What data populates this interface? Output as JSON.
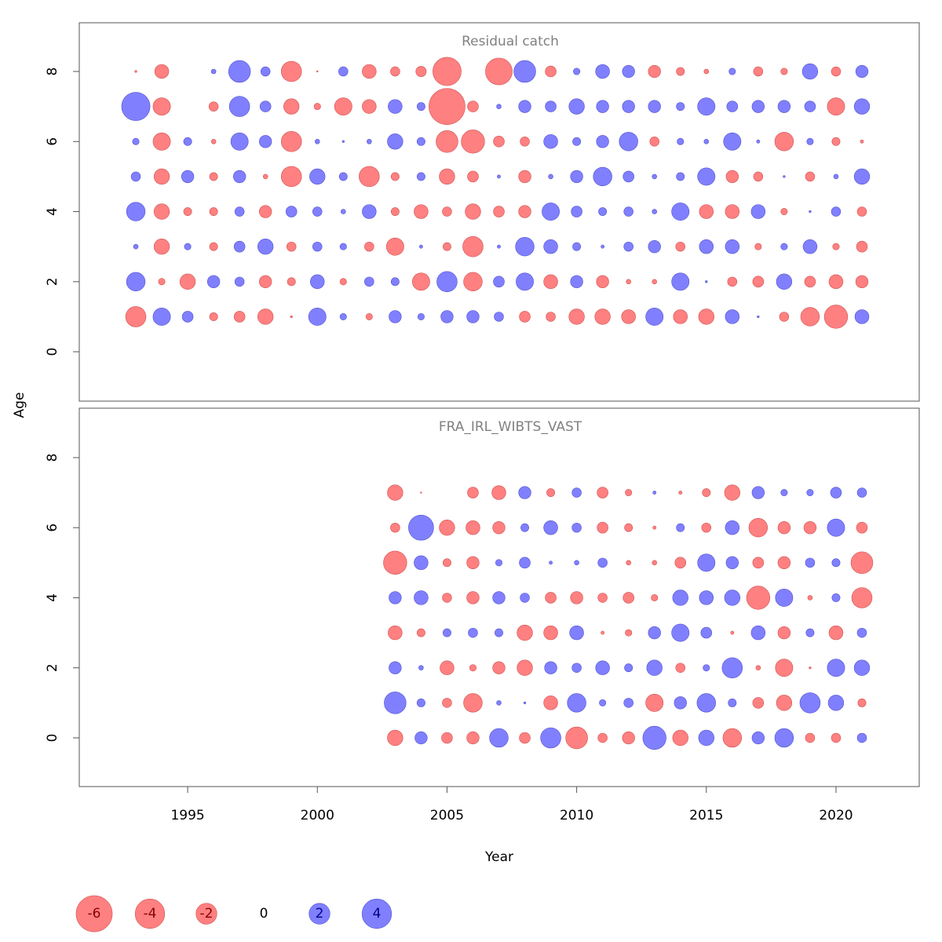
{
  "chart_data": [
    {
      "type": "bubble",
      "title": "Residual catch",
      "x": [
        1993,
        1994,
        1995,
        1996,
        1997,
        1998,
        1999,
        2000,
        2001,
        2002,
        2003,
        2004,
        2005,
        2006,
        2007,
        2008,
        2009,
        2010,
        2011,
        2012,
        2013,
        2014,
        2015,
        2016,
        2017,
        2018,
        2019,
        2020,
        2021
      ],
      "y": [
        1,
        2,
        3,
        4,
        5,
        6,
        7,
        8
      ],
      "values": [
        [
          -1.9,
          1.4,
          0.55,
          -0.3,
          -0.55,
          -1.1,
          -0.02,
          1.4,
          0.2,
          -0.2,
          0.7,
          0.2,
          0.7,
          0.7,
          0.4,
          -0.55,
          -0.4,
          -1.1,
          -1.1,
          -0.9,
          1.4,
          -0.9,
          -1.1,
          0.9,
          0.02,
          -0.4,
          -1.6,
          -2.5,
          0.9
        ],
        [
          1.6,
          -0.2,
          -1.1,
          0.7,
          0.4,
          -0.7,
          -0.3,
          0.9,
          -0.2,
          0.4,
          0.3,
          -1.4,
          1.9,
          -1.6,
          0.55,
          1.4,
          -0.9,
          0.7,
          -0.7,
          -0.1,
          -0.1,
          1.4,
          0.02,
          -0.4,
          -0.55,
          1.1,
          -0.55,
          -0.9,
          -0.7
        ],
        [
          0.1,
          -1.1,
          0.2,
          -0.3,
          0.55,
          1.1,
          -0.4,
          0.4,
          0.2,
          -0.4,
          -1.4,
          0.05,
          -0.3,
          -1.9,
          0.05,
          1.6,
          0.9,
          0.3,
          0.05,
          0.4,
          0.7,
          -0.4,
          0.9,
          0.9,
          -0.2,
          0.2,
          0.9,
          -0.2,
          -0.55
        ],
        [
          1.6,
          -1.1,
          -0.3,
          -0.3,
          0.4,
          -0.7,
          0.55,
          0.4,
          0.1,
          0.9,
          -0.3,
          -0.9,
          -0.4,
          -1.1,
          -0.55,
          -0.7,
          1.4,
          0.55,
          0.3,
          0.4,
          0.1,
          1.4,
          -0.9,
          -0.9,
          0.9,
          -0.2,
          0.02,
          0.4,
          -0.4
        ],
        [
          0.4,
          -1.1,
          0.7,
          -0.3,
          0.7,
          -0.1,
          -1.9,
          1.1,
          0.3,
          -1.9,
          -0.3,
          0.3,
          -1.1,
          -0.55,
          0.05,
          -0.7,
          0.1,
          0.7,
          1.6,
          0.55,
          0.1,
          0.3,
          1.4,
          -0.7,
          -0.4,
          0.02,
          -0.4,
          0.1,
          1.1
        ],
        [
          0.2,
          -1.4,
          0.3,
          -0.1,
          1.4,
          0.7,
          -1.9,
          0.1,
          0.02,
          0.1,
          1.1,
          0.3,
          -2.2,
          -2.5,
          -0.55,
          -0.4,
          0.9,
          0.3,
          0.7,
          1.6,
          -0.4,
          0.2,
          0.1,
          1.4,
          0.05,
          -1.6,
          0.2,
          -0.3,
          -0.05
        ],
        [
          3.7,
          -1.4,
          null,
          -0.4,
          1.9,
          0.55,
          -1.1,
          -0.2,
          -1.4,
          -0.9,
          0.9,
          0.3,
          -6,
          -0.55,
          0.1,
          0.7,
          0.55,
          1.1,
          0.7,
          0.7,
          0.7,
          0.3,
          1.4,
          0.55,
          0.7,
          0.7,
          0.55,
          -1.4,
          1.1
        ],
        [
          -0.02,
          -0.9,
          null,
          0.1,
          2.2,
          0.4,
          -1.9,
          -0.01,
          0.4,
          -0.9,
          -0.4,
          -0.5,
          -3.7,
          null,
          -3.3,
          2.2,
          -0.55,
          0.2,
          0.9,
          0.7,
          -0.7,
          -0.3,
          -0.1,
          0.2,
          -0.4,
          -0.2,
          1.1,
          -0.4,
          0.7
        ]
      ],
      "xlim": [
        1990.82,
        2023.21
      ],
      "ylim": [
        -1.41,
        9.39
      ],
      "yticks": [
        0,
        2,
        4,
        6,
        8
      ],
      "colors": {
        "negative": "#ff8080",
        "positive": "#8080ff"
      }
    },
    {
      "type": "bubble",
      "title": "FRA_IRL_WIBTS_VAST",
      "x": [
        2003,
        2004,
        2005,
        2006,
        2007,
        2008,
        2009,
        2010,
        2011,
        2012,
        2013,
        2014,
        2015,
        2016,
        2017,
        2018,
        2019,
        2020,
        2021
      ],
      "y": [
        0,
        1,
        2,
        3,
        4,
        5,
        6,
        7
      ],
      "values": [
        [
          -1.1,
          0.7,
          -0.55,
          -0.7,
          1.6,
          -0.55,
          1.9,
          -2.2,
          -0.4,
          -0.7,
          2.5,
          -1.1,
          1.1,
          -1.6,
          0.7,
          1.6,
          -0.4,
          -0.4,
          0.4
        ],
        [
          2.2,
          0.3,
          -0.4,
          -1.6,
          0.1,
          0.02,
          -0.9,
          1.6,
          0.2,
          0.4,
          -1.4,
          0.7,
          1.6,
          0.3,
          -0.55,
          -1.1,
          1.9,
          1.1,
          -0.3
        ],
        [
          0.7,
          0.1,
          -0.9,
          -0.2,
          -0.7,
          -1.1,
          0.7,
          0.4,
          0.9,
          0.3,
          1.1,
          -0.4,
          0.2,
          1.9,
          -0.1,
          -1.4,
          -0.02,
          1.4,
          1.1
        ],
        [
          -0.9,
          -0.3,
          0.3,
          0.4,
          0.3,
          -1.1,
          -0.9,
          0.9,
          -0.05,
          -0.2,
          0.7,
          1.4,
          0.55,
          -0.05,
          0.9,
          -0.7,
          0.3,
          -0.9,
          0.4
        ],
        [
          0.7,
          0.9,
          -0.4,
          -0.7,
          0.7,
          0.4,
          -0.55,
          -0.7,
          -0.4,
          -0.55,
          -0.2,
          1.1,
          0.9,
          1.1,
          -2.5,
          1.4,
          -0.1,
          0.3,
          -1.9
        ],
        [
          -2.5,
          0.9,
          -0.3,
          -0.7,
          0.2,
          0.55,
          0.05,
          0.1,
          0.4,
          -0.1,
          -0.1,
          -0.55,
          1.4,
          0.7,
          -0.55,
          -0.7,
          0.4,
          0.3,
          -2.2
        ],
        [
          -0.4,
          2.9,
          -1.1,
          -0.9,
          -0.7,
          0.3,
          0.9,
          0.4,
          -0.55,
          -0.3,
          -0.05,
          0.3,
          -0.4,
          0.9,
          -1.6,
          -0.7,
          -0.7,
          1.4,
          -0.55
        ],
        [
          -1.1,
          -0.01,
          null,
          -0.55,
          -0.9,
          0.7,
          -0.3,
          0.4,
          -0.55,
          -0.2,
          0.05,
          -0.05,
          -0.3,
          -1.1,
          0.7,
          0.2,
          0.2,
          0.55,
          0.4
        ]
      ],
      "xlim": [
        1990.82,
        2023.21
      ],
      "ylim": [
        -1.39,
        9.41
      ],
      "yticks": [
        0,
        2,
        4,
        6,
        8
      ],
      "xticks": [
        1995,
        2000,
        2005,
        2010,
        2015,
        2020
      ],
      "colors": {
        "negative": "#ff8080",
        "positive": "#8080ff"
      }
    }
  ],
  "xlabel": "Year",
  "ylabel": "Age",
  "legend": {
    "values": [
      -6,
      -4,
      -2,
      0,
      2,
      4
    ]
  }
}
